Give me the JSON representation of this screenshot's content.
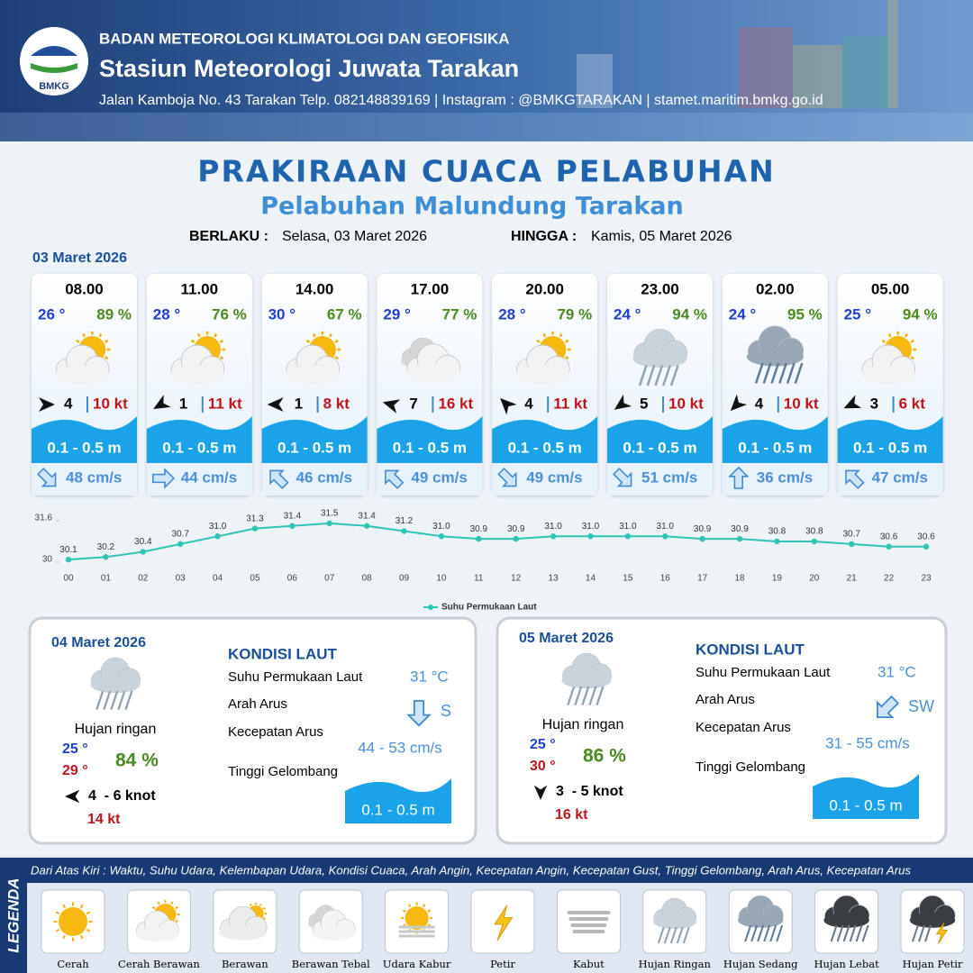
{
  "header": {
    "org": "BADAN METEOROLOGI KLIMATOLOGI DAN GEOFISIKA",
    "station": "Stasiun Meteorologi Juwata Tarakan",
    "address": "Jalan Kamboja No. 43 Tarakan  Telp. 082148839169 | Instagram : @BMKGTARAKAN | stamet.maritim.bmkg.go.id",
    "logo": "BMKG"
  },
  "title": "PRAKIRAAN CUACA PELABUHAN",
  "subtitle": "Pelabuhan Malundung Tarakan",
  "validity": {
    "from_label": "BERLAKU :",
    "from": "Selasa, 03 Maret 2026",
    "to_label": "HINGGA :",
    "to": "Kamis, 05 Maret 2026"
  },
  "today": {
    "date": "03 Maret 2026",
    "slots": [
      {
        "time": "08.00",
        "temp": "26 °",
        "humidity": "89 %",
        "icon": 1,
        "wind_dir": 0,
        "wind": "4",
        "gust": "10 kt",
        "wave": "0.1 - 0.5 m",
        "current_dir": 45,
        "current": "48 cm/s"
      },
      {
        "time": "11.00",
        "temp": "28 °",
        "humidity": "76 %",
        "icon": 1,
        "wind_dir": 150,
        "wind": "1",
        "gust": "11 kt",
        "wave": "0.1 - 0.5 m",
        "current_dir": 0,
        "current": "44 cm/s"
      },
      {
        "time": "14.00",
        "temp": "30 °",
        "humidity": "67 %",
        "icon": 1,
        "wind_dir": 180,
        "wind": "1",
        "gust": "8 kt",
        "wave": "0.1 - 0.5 m",
        "current_dir": 225,
        "current": "46 cm/s"
      },
      {
        "time": "17.00",
        "temp": "29 °",
        "humidity": "77 %",
        "icon": 3,
        "wind_dir": 195,
        "wind": "7",
        "gust": "16 kt",
        "wave": "0.1 - 0.5 m",
        "current_dir": 225,
        "current": "49 cm/s"
      },
      {
        "time": "20.00",
        "temp": "28 °",
        "humidity": "79 %",
        "icon": 1,
        "wind_dir": 225,
        "wind": "4",
        "gust": "11 kt",
        "wave": "0.1 - 0.5 m",
        "current_dir": 45,
        "current": "49 cm/s"
      },
      {
        "time": "23.00",
        "temp": "24 °",
        "humidity": "94 %",
        "icon": 7,
        "wind_dir": 145,
        "wind": "5",
        "gust": "10 kt",
        "wave": "0.1 - 0.5 m",
        "current_dir": 45,
        "current": "51 cm/s"
      },
      {
        "time": "02.00",
        "temp": "24 °",
        "humidity": "95 %",
        "icon": 8,
        "wind_dir": 135,
        "wind": "4",
        "gust": "10 kt",
        "wave": "0.1 - 0.5 m",
        "current_dir": 270,
        "current": "36 cm/s"
      },
      {
        "time": "05.00",
        "temp": "25 °",
        "humidity": "94 %",
        "icon": 1,
        "wind_dir": 155,
        "wind": "3",
        "gust": "6 kt",
        "wave": "0.1 - 0.5 m",
        "current_dir": 225,
        "current": "47 cm/s"
      }
    ]
  },
  "chart_data": {
    "type": "line",
    "x": [
      "00",
      "01",
      "02",
      "03",
      "04",
      "05",
      "06",
      "07",
      "08",
      "09",
      "10",
      "11",
      "12",
      "13",
      "14",
      "15",
      "16",
      "17",
      "18",
      "19",
      "20",
      "21",
      "22",
      "23"
    ],
    "series": [
      {
        "name": "Suhu Permukaan Laut",
        "color": "#2ec4b6",
        "values": [
          30.1,
          30.2,
          30.4,
          30.7,
          31.0,
          31.3,
          31.4,
          31.5,
          31.4,
          31.2,
          31.0,
          30.9,
          30.9,
          31.0,
          31.0,
          31.0,
          31.0,
          30.9,
          30.9,
          30.8,
          30.8,
          30.7,
          30.6,
          30.6
        ],
        "value_labels": [
          "30.1",
          "30.2",
          "30.4",
          "30.7",
          "31.0",
          "31.3",
          "31.4",
          "31.5",
          "31.4",
          "31.2",
          "31.0",
          "30.9",
          "30.9",
          "31.0",
          "31.0",
          "31.0",
          "31.0",
          "30.9",
          "30.9",
          "30.8",
          "30.8",
          "30.7",
          "30.6",
          "30.6"
        ]
      }
    ],
    "ylim": [
      30,
      31.6
    ],
    "yticks": [
      30,
      31.6
    ],
    "grid": false,
    "legend": "bottom"
  },
  "outlook": [
    {
      "date": "04 Maret 2026",
      "icon": 7,
      "weather": "Hujan ringan",
      "temp_min": "25 °",
      "temp_max": "29 °",
      "humidity": "84 %",
      "wind_dir": 180,
      "wind": "4  - 6 knot",
      "gust": "14 kt",
      "sea_title": "KONDISI LAUT",
      "sst_label": "Suhu Permukaan Laut",
      "sst": "31 °C",
      "current_dir_label": "Arah Arus",
      "current_arrow": 90,
      "current_dir": "S",
      "current_speed_label": "Kecepatan Arus",
      "current_speed": "44 - 53 cm/s",
      "wave_label": "Tinggi Gelombang",
      "wave": "0.1 - 0.5 m"
    },
    {
      "date": "05 Maret 2026",
      "icon": 7,
      "weather": "Hujan ringan",
      "temp_min": "25 °",
      "temp_max": "30 °",
      "humidity": "86 %",
      "wind_dir": 90,
      "wind": "3  - 5 knot",
      "gust": "16 kt",
      "sea_title": "KONDISI LAUT",
      "sst_label": "Suhu Permukaan Laut",
      "sst": "31 °C",
      "current_dir_label": "Arah Arus",
      "current_arrow": 135,
      "current_dir": "SW",
      "current_speed_label": "Kecepatan Arus",
      "current_speed": "31 - 55 cm/s",
      "wave_label": "Tinggi Gelombang",
      "wave": "0.1 - 0.5 m"
    }
  ],
  "legend": {
    "title": "LEGENDA",
    "description": "Dari Atas Kiri : Waktu, Suhu Udara, Kelembapan Udara, Kondisi Cuaca, Arah Angin, Kecepatan Angin, Kecepatan Gust, Tinggi Gelombang, Arah Arus, Kecepatan Arus",
    "items": [
      "Cerah",
      "Cerah Berawan",
      "Berawan",
      "Berawan Tebal",
      "Udara Kabur",
      "Petir",
      "Kabut",
      "Hujan Ringan",
      "Hujan Sedang",
      "Hujan Lebat",
      "Hujan Petir"
    ]
  }
}
